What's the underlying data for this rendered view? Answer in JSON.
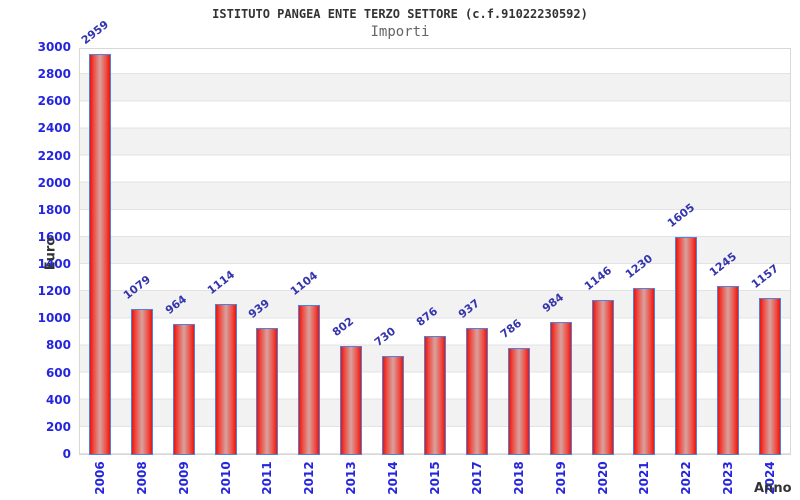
{
  "header": {
    "title": "ISTITUTO PANGEA ENTE TERZO SETTORE (c.f.91022230592)",
    "subtitle": "Importi"
  },
  "chart_data": {
    "type": "bar",
    "title": "ISTITUTO PANGEA ENTE TERZO SETTORE (c.f.91022230592)",
    "subtitle": "Importi",
    "xlabel": "Anno",
    "ylabel": "Euro",
    "categories": [
      "2006",
      "2008",
      "2009",
      "2010",
      "2011",
      "2012",
      "2013",
      "2014",
      "2015",
      "2017",
      "2018",
      "2019",
      "2020",
      "2021",
      "2022",
      "2023",
      "2024"
    ],
    "values": [
      2959,
      1079,
      964,
      1114,
      939,
      1104,
      802,
      730,
      876,
      937,
      786,
      984,
      1146,
      1230,
      1605,
      1245,
      1157
    ],
    "ylim": [
      0,
      3000
    ],
    "ytick_step": 200,
    "legend": "none",
    "grid": "horizontal-bands-every-200",
    "colors": {
      "bar_edge": "#e8160c",
      "bar_center": "#d8a29d",
      "bar_border": "#4d82e0",
      "tick_label": "#2525dd",
      "value_label": "#3434ad",
      "band_gray": "#f2f2f2",
      "grid_line": "#e3e3e3",
      "title": "#333333",
      "subtitle": "#666666",
      "axis_title": "#333333",
      "plot_border": "#d8d8d8"
    }
  }
}
